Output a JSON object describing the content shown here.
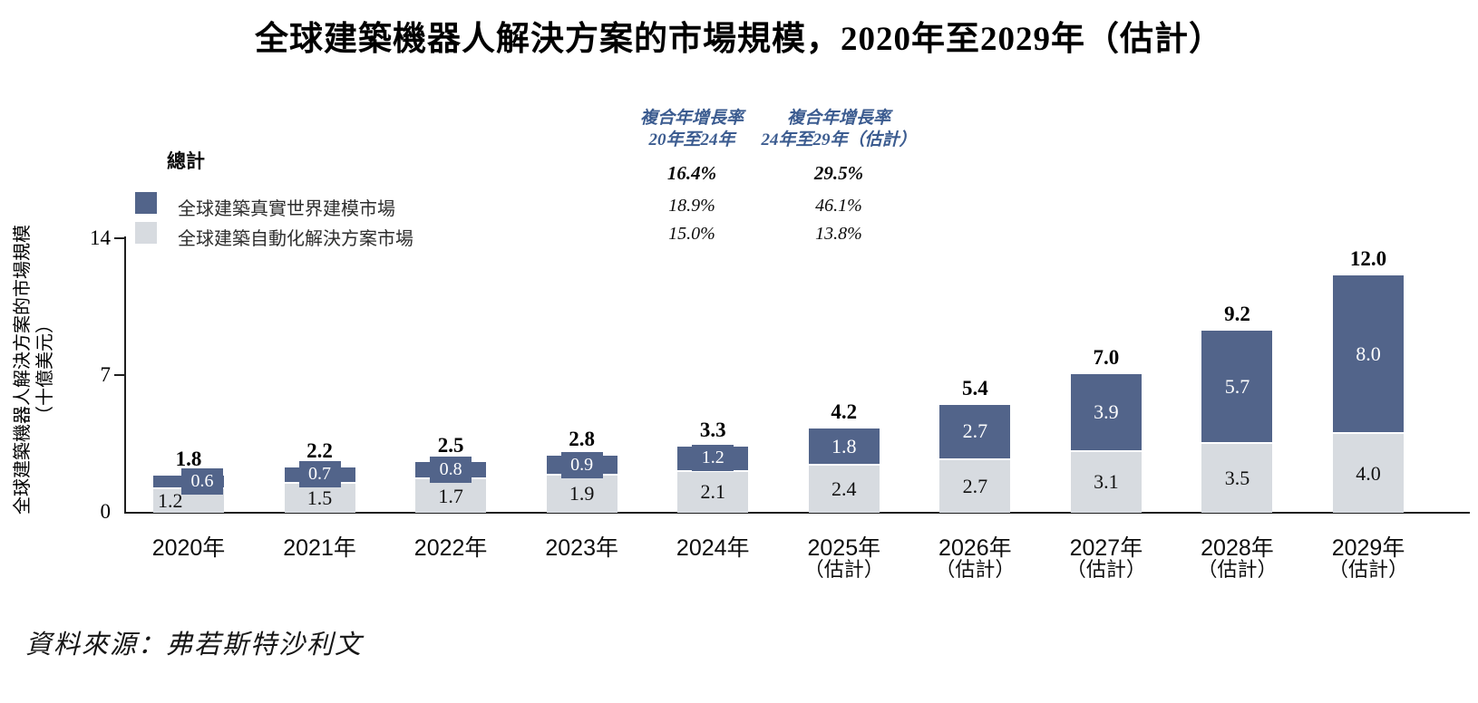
{
  "title": "全球建築機器人解決方案的市場規模，2020年至2029年（估計）",
  "source": "資料來源：弗若斯特沙利文",
  "colors": {
    "dark_series": "#52648a",
    "light_series": "#d7dbe0",
    "cagr_header_blue": "#3c5c90",
    "axis": "#1f1f1f"
  },
  "legend": {
    "total_label": "總計",
    "items": [
      {
        "label": "全球建築真實世界建模市場"
      },
      {
        "label": "全球建築自動化解決方案市場"
      }
    ]
  },
  "cagr": {
    "columns": [
      {
        "header_line1": "複合年增長率",
        "header_line2": "20年至24年",
        "total": "16.4%",
        "modeling": "18.9%",
        "automation": "15.0%"
      },
      {
        "header_line1": "複合年增長率",
        "header_line2": "24年至29年（估計）",
        "total": "29.5%",
        "modeling": "46.1%",
        "automation": "13.8%"
      }
    ]
  },
  "y_axis": {
    "tick_labels": [
      "14",
      "7",
      "0"
    ],
    "label_line1": "全球建築機器人解決方案的市場規模",
    "label_line2": "（十億美元）"
  },
  "chart_data": {
    "type": "bar",
    "stacked": true,
    "title": "全球建築機器人解決方案的市場規模，2020年至2029年（估計）",
    "ylabel": "全球建築機器人解決方案的市場規模（十億美元）",
    "ylim": [
      0,
      14
    ],
    "y_ticks": [
      0,
      7,
      14
    ],
    "grid": false,
    "legend_position": "top-left",
    "categories": [
      "2020年",
      "2021年",
      "2022年",
      "2023年",
      "2024年",
      "2025年",
      "2026年",
      "2027年",
      "2028年",
      "2029年"
    ],
    "estimate_note": "（估計）",
    "estimate_from_index": 5,
    "series": [
      {
        "name": "全球建築自動化解決方案市場",
        "color": "#d7dbe0",
        "values": [
          1.2,
          1.5,
          1.7,
          1.9,
          2.1,
          2.4,
          2.7,
          3.1,
          3.5,
          4.0
        ]
      },
      {
        "name": "全球建築真實世界建模市場",
        "color": "#52648a",
        "values": [
          0.6,
          0.7,
          0.8,
          0.9,
          1.2,
          1.8,
          2.7,
          3.9,
          5.7,
          8.0
        ]
      }
    ],
    "totals": [
      1.8,
      2.2,
      2.5,
      2.8,
      3.3,
      4.2,
      5.4,
      7.0,
      9.2,
      12.0
    ],
    "cagr_2020_2024": {
      "total": "16.4%",
      "modeling": "18.9%",
      "automation": "15.0%"
    },
    "cagr_2024_2029_est": {
      "total": "29.5%",
      "modeling": "46.1%",
      "automation": "13.8%"
    }
  }
}
